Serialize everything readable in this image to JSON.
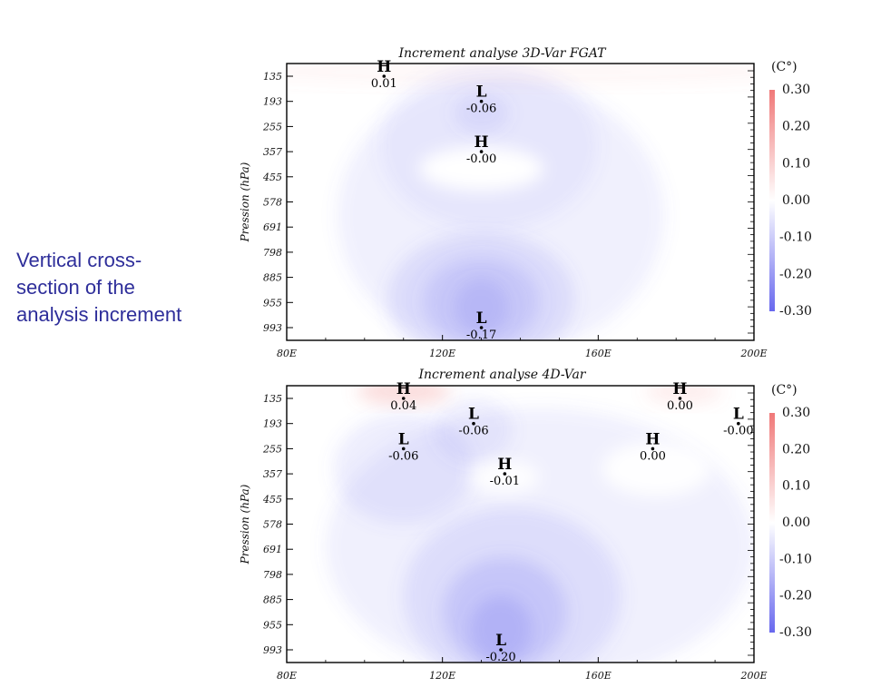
{
  "caption": {
    "line1": "Vertical cross-",
    "line2": "section of the",
    "line3": "analysis increment"
  },
  "colors": {
    "positive": "#f07878",
    "negative": "#6868ee",
    "neutral": "#ffffff",
    "axes": "#000000",
    "caption_text": "#2e2e9a"
  },
  "chart_data": [
    {
      "type": "heatmap",
      "title": "Increment analyse 3D-Var FGAT",
      "ylabel": "Pression (hPa)",
      "xlabel": "",
      "x_ticks": [
        "80E",
        "120E",
        "160E",
        "200E"
      ],
      "y_ticks": [
        "135",
        "193",
        "255",
        "357",
        "455",
        "578",
        "691",
        "798",
        "885",
        "955",
        "993"
      ],
      "xlim": [
        80,
        200
      ],
      "colorbar": {
        "unit": "(C°)",
        "labels": [
          "0.30",
          "0.20",
          "0.10",
          "0.00",
          "-0.10",
          "-0.20",
          "-0.30"
        ],
        "range": [
          -0.3,
          0.3
        ]
      },
      "extrema": [
        {
          "kind": "H",
          "x": 105,
          "level": "135",
          "value": "0.01"
        },
        {
          "kind": "L",
          "x": 130,
          "level": "193",
          "value": "-0.06"
        },
        {
          "kind": "H",
          "x": 130,
          "level": "357",
          "value": "-0.00"
        },
        {
          "kind": "L",
          "x": 130,
          "level": "993",
          "value": "-0.17"
        }
      ]
    },
    {
      "type": "heatmap",
      "title": "Increment analyse 4D-Var",
      "ylabel": "Pression (hPa)",
      "xlabel": "",
      "x_ticks": [
        "80E",
        "120E",
        "160E",
        "200E"
      ],
      "y_ticks": [
        "135",
        "193",
        "255",
        "357",
        "455",
        "578",
        "691",
        "798",
        "885",
        "955",
        "993"
      ],
      "xlim": [
        80,
        200
      ],
      "colorbar": {
        "unit": "(C°)",
        "labels": [
          "0.30",
          "0.20",
          "0.10",
          "0.00",
          "-0.10",
          "-0.20",
          "-0.30"
        ],
        "range": [
          -0.3,
          0.3
        ]
      },
      "extrema": [
        {
          "kind": "H",
          "x": 110,
          "level": "135",
          "value": "0.04"
        },
        {
          "kind": "L",
          "x": 110,
          "level": "255",
          "value": "-0.06"
        },
        {
          "kind": "L",
          "x": 128,
          "level": "193",
          "value": "-0.06"
        },
        {
          "kind": "H",
          "x": 136,
          "level": "357",
          "value": "-0.01"
        },
        {
          "kind": "H",
          "x": 181,
          "level": "135",
          "value": "0.00"
        },
        {
          "kind": "L",
          "x": 196,
          "level": "193",
          "value": "-0.00"
        },
        {
          "kind": "H",
          "x": 174,
          "level": "255",
          "value": "0.00"
        },
        {
          "kind": "L",
          "x": 135,
          "level": "993",
          "value": "-0.20"
        }
      ]
    }
  ]
}
